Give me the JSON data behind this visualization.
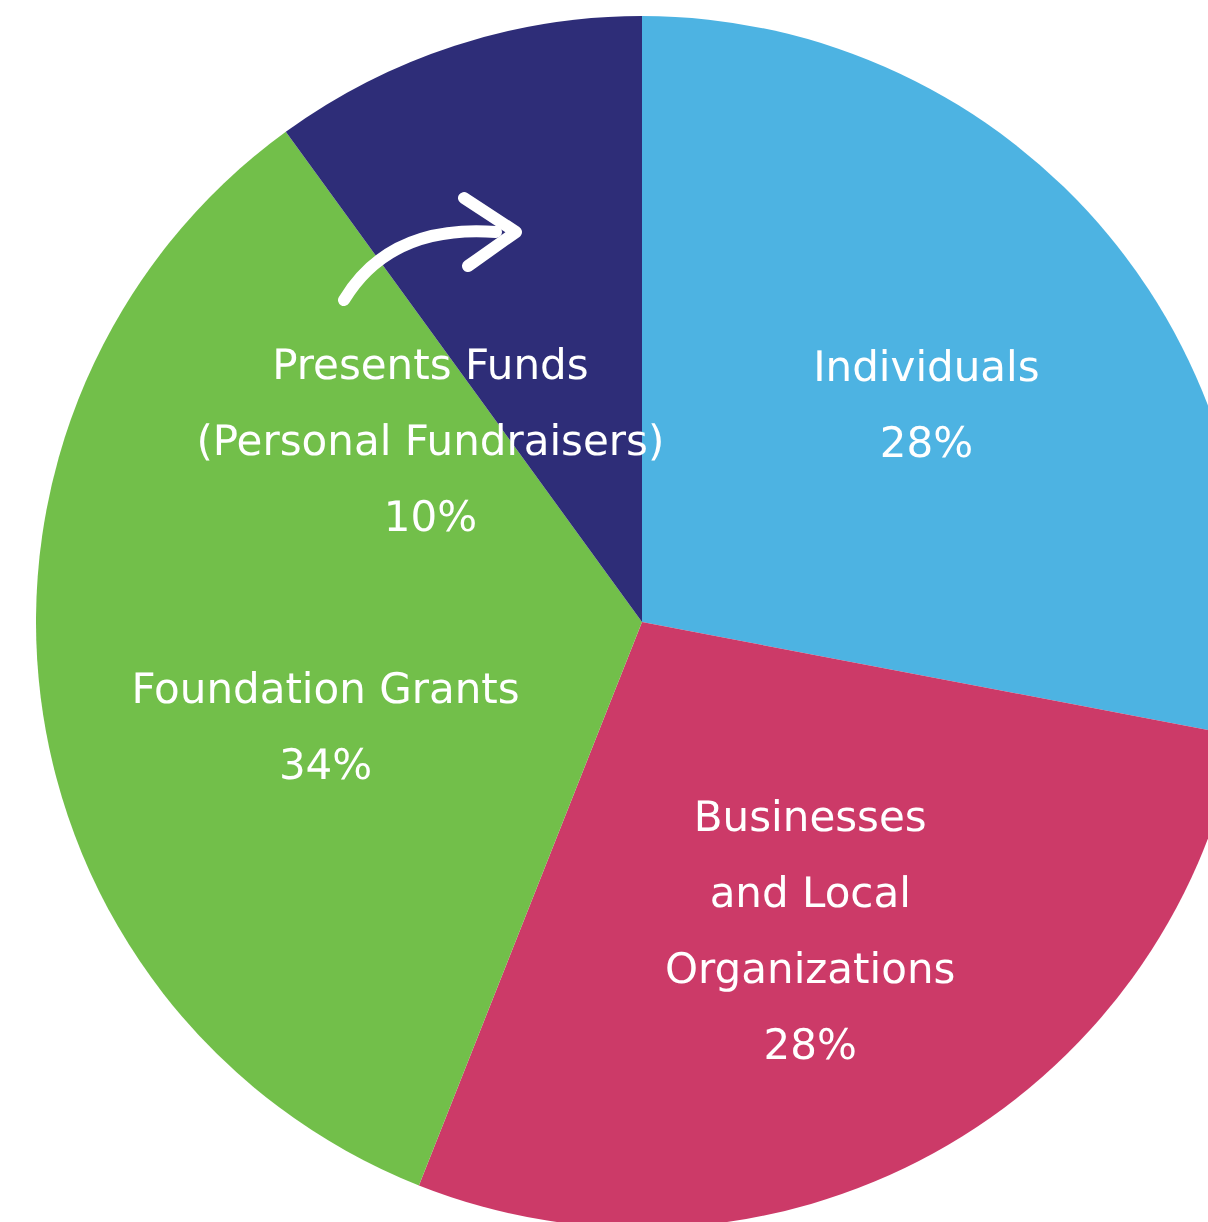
{
  "chart_data": {
    "type": "pie",
    "categories": [
      "Individuals",
      "Businesses and Local Organizations",
      "Foundation Grants",
      "Presents Funds (Personal Fundraisers)"
    ],
    "values": [
      28,
      28,
      34,
      10
    ],
    "colors": [
      "#4db3e2",
      "#cc3a68",
      "#72bf4a",
      "#2e2d78"
    ],
    "value_labels": [
      "28%",
      "28%",
      "34%",
      "10%"
    ]
  }
}
